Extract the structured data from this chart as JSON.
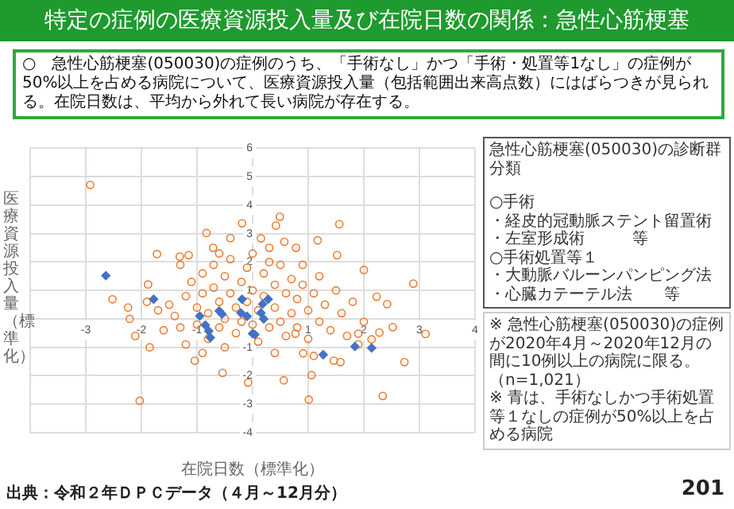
{
  "chart_data": {
    "type": "scatter",
    "title": "特定の症例の医療資源投入量及び在院日数の関係：急性心筋梗塞",
    "subtitle": "○　急性心筋梗塞(050030)の症例のうち、「手術なし」かつ「手術・処置等1なし」の症例が50%以上を占める病院について、医療資源投入量（包括範囲出来高点数）にはばらつきが見られる。在院日数は、平均から外れて長い病院が存在する。",
    "xlabel": "在院日数（標準化）",
    "ylabel": "医療資源投入量（標準化）",
    "xlim": [
      -4,
      4
    ],
    "xticks": [
      {
        "value": -4,
        "label": null
      },
      -3,
      -2,
      -1,
      1,
      2,
      3,
      4
    ],
    "ylim": [
      -4,
      6
    ],
    "yticks": [
      -4,
      -3,
      -2,
      -1,
      1,
      2,
      3,
      4,
      5,
      6
    ],
    "grid": true,
    "legend": false,
    "series": [
      {
        "color": "#ed7d31",
        "marker": "circle",
        "x": [
          -2.92,
          -2.03,
          -0.19,
          0.49,
          0.42,
          1.56,
          1.17,
          1.52,
          2.0,
          2.89,
          3.11,
          2.52,
          2.73,
          2.34,
          1.01,
          1.06,
          0.56,
          -0.08,
          -0.54,
          -0.83,
          -1.31,
          -1.72,
          -1.88,
          -2.24,
          -2.52,
          -2.21,
          -2.11,
          -1.85,
          -1.04,
          1.9,
          2.23,
          2.42,
          2.28,
          2.14,
          1.58,
          1.46,
          0.57,
          0.78,
          0.15,
          -0.4,
          -0.71,
          -1.15,
          0.77,
          0.91,
          -1.5,
          -1.4,
          -1.3,
          -1.2,
          -1.1,
          -1.0,
          -1.0,
          -0.9,
          -0.9,
          -0.8,
          -0.8,
          -0.7,
          -0.7,
          -0.6,
          -0.6,
          -0.5,
          -0.5,
          -0.5,
          -0.4,
          -0.4,
          -0.3,
          -0.3,
          -0.2,
          -0.2,
          -0.1,
          -0.1,
          0.0,
          0.0,
          0.0,
          0.1,
          0.1,
          0.2,
          0.2,
          0.3,
          0.3,
          0.4,
          0.4,
          0.5,
          0.5,
          0.6,
          0.6,
          0.7,
          0.7,
          0.8,
          0.8,
          0.9,
          1.0,
          1.0,
          1.1,
          1.2,
          1.3,
          1.4,
          1.5,
          1.6,
          1.7,
          1.8,
          -1.6,
          -1.7,
          -1.9,
          -1.3,
          -0.6,
          0.3,
          0.9,
          1.2,
          0.4,
          -0.9,
          1.1,
          -1.2,
          2.0,
          1.9
        ],
        "values": [
          4.71,
          -2.88,
          3.36,
          3.59,
          3.28,
          3.33,
          2.76,
          2.24,
          1.72,
          1.24,
          -0.53,
          -0.29,
          -1.52,
          -2.71,
          -2.84,
          -1.98,
          -2.16,
          -2.24,
          -1.9,
          3.02,
          2.19,
          2.28,
          1.21,
          0.4,
          0.69,
          0.0,
          -0.6,
          -1.0,
          -1.47,
          -0.52,
          0.78,
          0.52,
          -0.48,
          -0.72,
          -1.52,
          -1.47,
          2.71,
          2.5,
          2.83,
          2.84,
          2.5,
          2.24,
          -0.52,
          -1.21,
          0.5,
          0.1,
          -0.3,
          0.8,
          1.3,
          0.4,
          -0.2,
          1.6,
          0.9,
          0.2,
          -0.7,
          1.9,
          1.1,
          0.6,
          -0.3,
          1.5,
          0.0,
          -1.0,
          2.1,
          0.9,
          0.4,
          -0.5,
          1.3,
          -0.1,
          1.8,
          0.6,
          2.3,
          1.0,
          -0.2,
          0.3,
          -0.8,
          1.6,
          0.8,
          2.0,
          -0.3,
          1.2,
          0.4,
          -0.1,
          1.9,
          0.9,
          -0.6,
          1.4,
          0.2,
          0.7,
          -0.3,
          1.2,
          0.3,
          -0.7,
          0.9,
          -0.1,
          0.5,
          -0.4,
          1.0,
          0.2,
          -0.6,
          0.6,
          -0.4,
          0.3,
          0.6,
          1.9,
          2.3,
          2.5,
          1.9,
          1.5,
          -1.2,
          -1.2,
          -1.3,
          -0.9,
          -0.1,
          -0.9
        ]
      },
      {
        "color": "#4472c4",
        "marker": "diamond",
        "x": [
          -2.64,
          -1.78,
          -0.95,
          -0.85,
          -0.79,
          -0.76,
          -0.6,
          -0.55,
          -0.19,
          -0.21,
          -0.1,
          0.15,
          0.18,
          0.28,
          0.2,
          0.0,
          0.04,
          1.27,
          1.84,
          2.14
        ],
        "values": [
          1.52,
          0.69,
          0.1,
          -0.22,
          -0.43,
          -0.66,
          0.28,
          0.17,
          0.69,
          0.21,
          0.09,
          0.21,
          0.52,
          0.69,
          0.0,
          -0.52,
          -0.55,
          -1.26,
          -0.97,
          -1.02
        ]
      }
    ],
    "annotations": [
      "急性心筋梗塞(050030)の診断群分類",
      "○手術",
      "・経皮的冠動脈ステント留置術",
      "・左室形成術　　　等",
      "○手術処置等１",
      "・大動脈バルーンパンピング法",
      "・心臓カテーテル法　　等",
      "※ 急性心筋梗塞(050030)の症例が2020年4月～2020年12月の間に10例以上の病院に限る。",
      "（n=1,021）",
      "※ 青は、手術なしかつ手術処置等１なしの症例が50%以上を占める病院",
      "出典：令和２年ＤＰＣデータ（４月～12月分）",
      "201"
    ]
  }
}
